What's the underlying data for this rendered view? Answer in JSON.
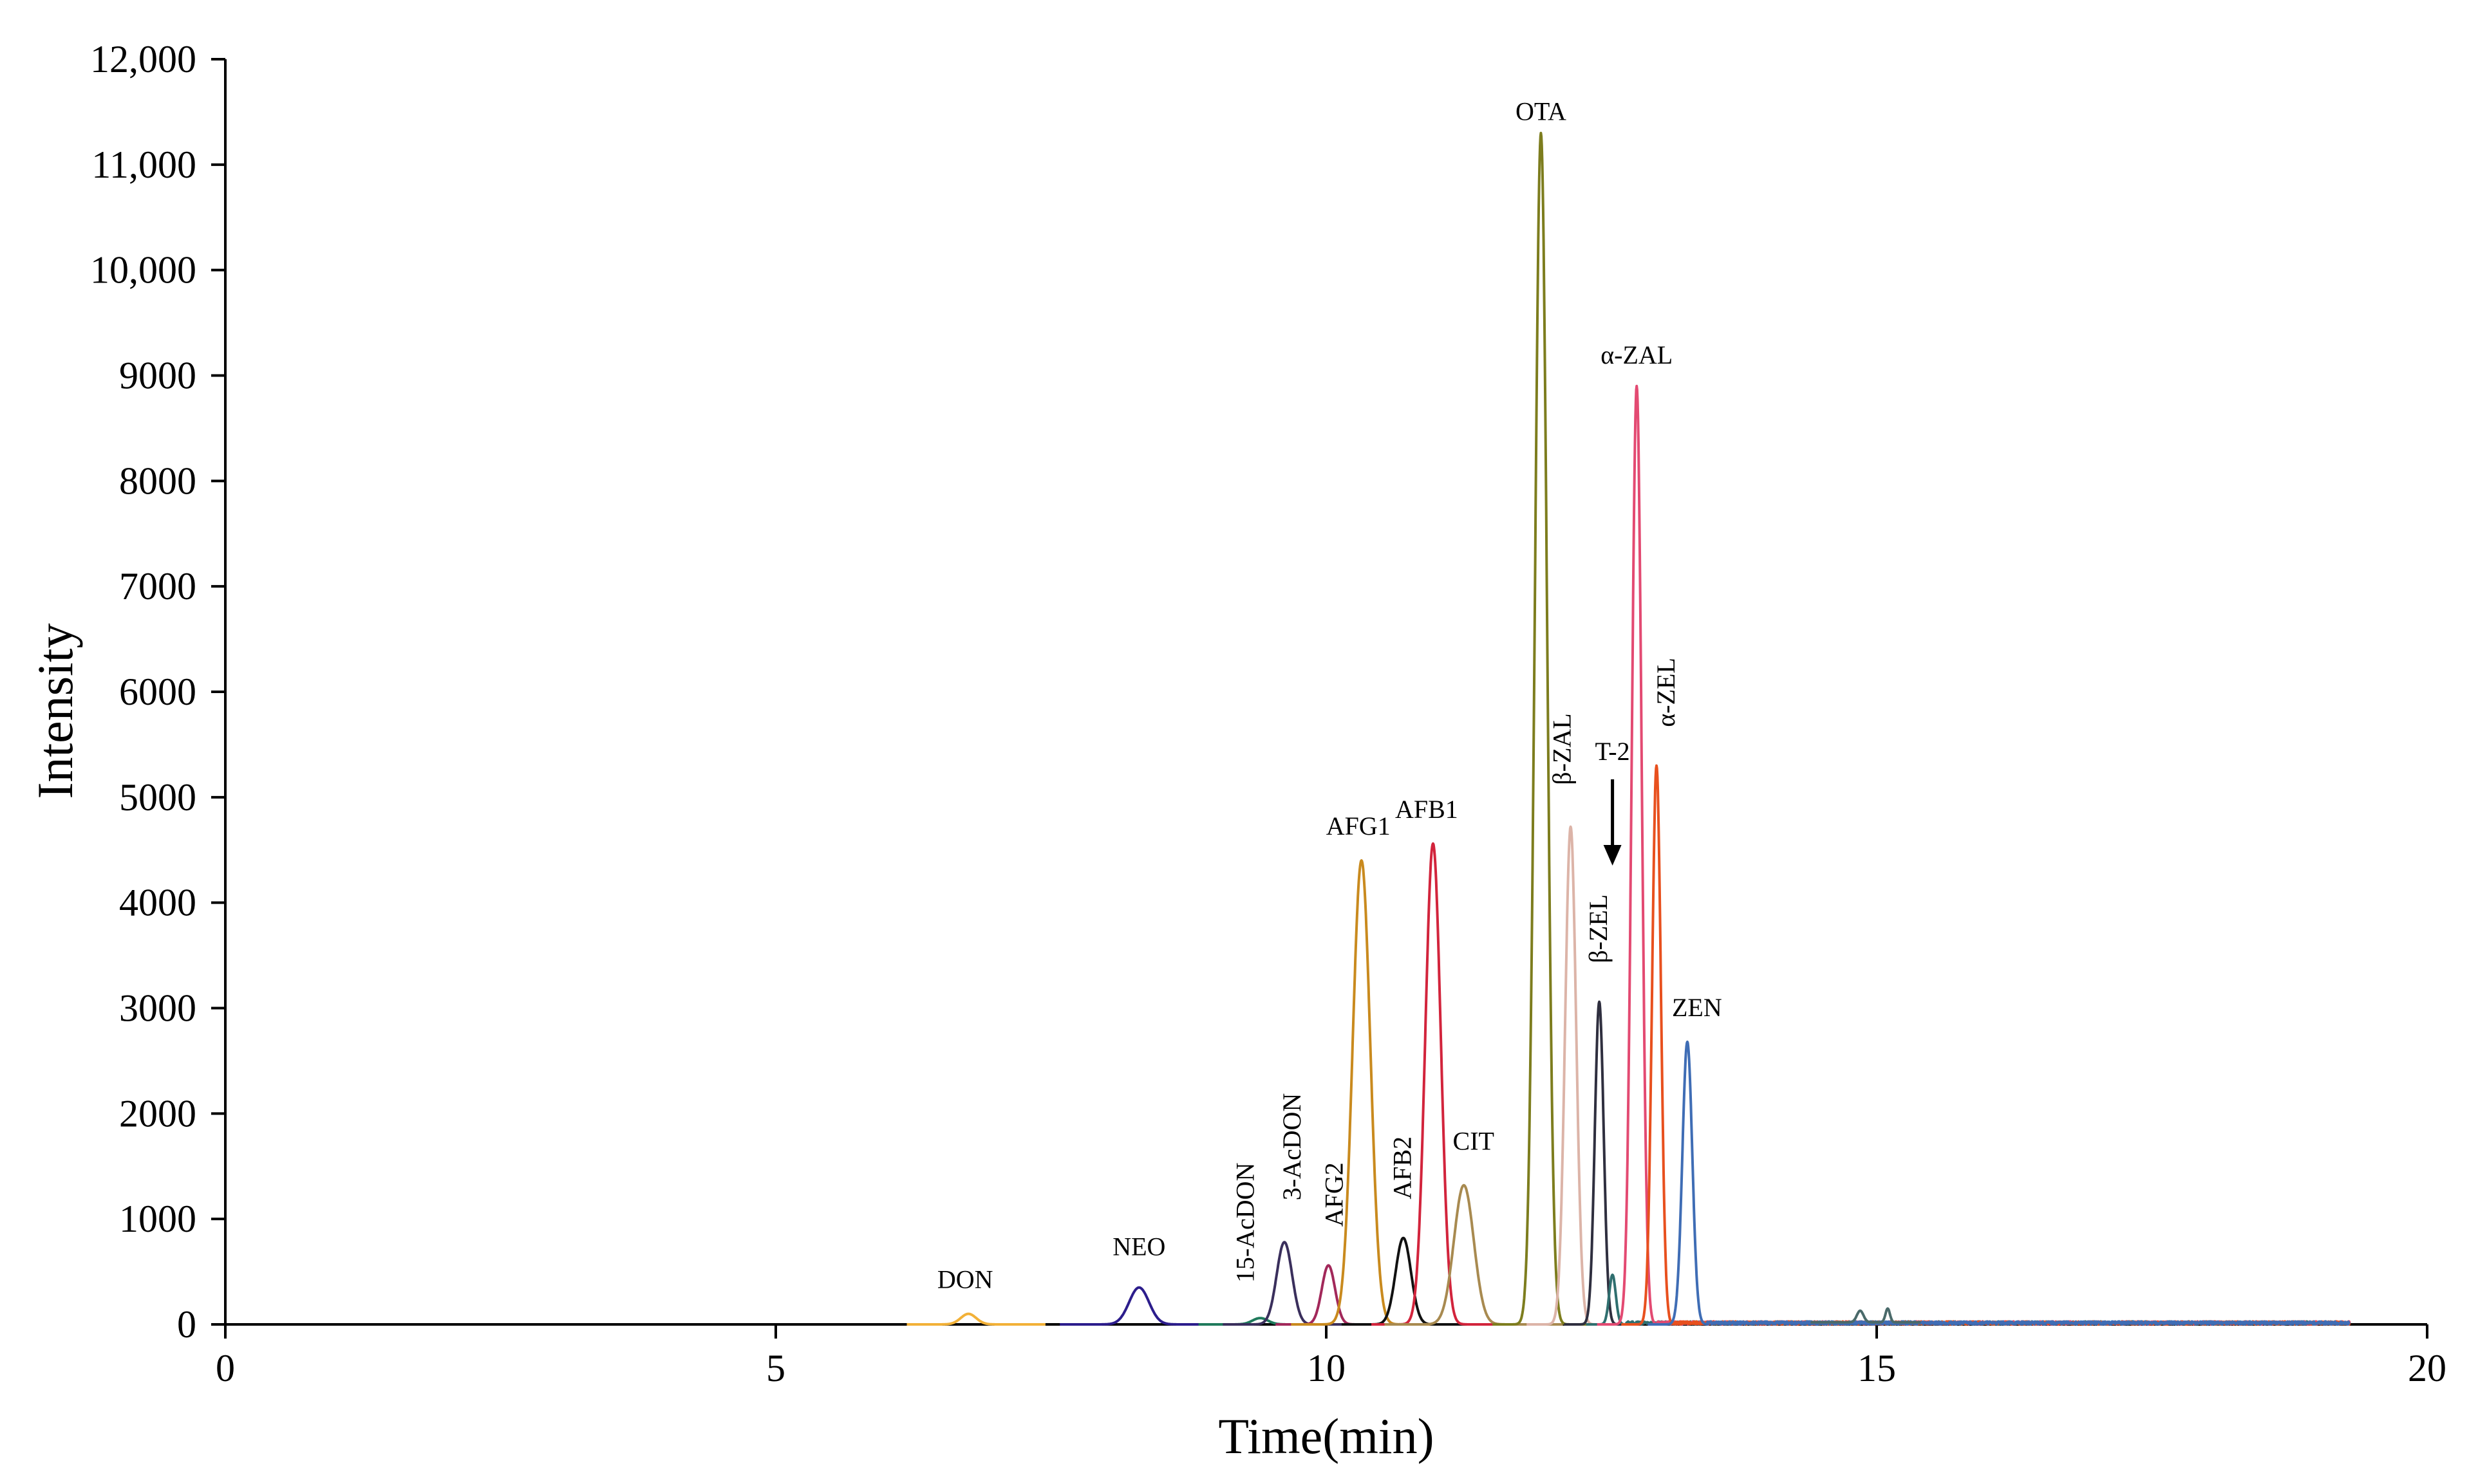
{
  "chart_data": {
    "type": "line",
    "title": "",
    "xlabel": "Time(min)",
    "ylabel": "Intensity",
    "xlim": [
      0,
      20
    ],
    "ylim": [
      0,
      12000
    ],
    "x_ticks": [
      0,
      5,
      10,
      15,
      20
    ],
    "x_tick_labels": [
      "0",
      "5",
      "10",
      "15",
      "20"
    ],
    "y_ticks": [
      0,
      1000,
      2000,
      3000,
      4000,
      5000,
      6000,
      7000,
      8000,
      9000,
      10000,
      11000,
      12000
    ],
    "y_tick_labels": [
      "0",
      "1000",
      "2000",
      "3000",
      "4000",
      "5000",
      "6000",
      "7000",
      "8000",
      "9000",
      "10,000",
      "11,000",
      "12,000"
    ],
    "grid": false,
    "series": [
      {
        "name": "DON",
        "label": "DON",
        "retention_time": 6.75,
        "peak_intensity": 100,
        "width": 0.07,
        "color": "#f2b138"
      },
      {
        "name": "NEO",
        "label": "NEO",
        "retention_time": 8.3,
        "peak_intensity": 350,
        "width": 0.09,
        "color": "#2c1d8c"
      },
      {
        "name": "15-AcDON",
        "label": "15-AcDON",
        "retention_time": 9.4,
        "peak_intensity": 60,
        "width": 0.07,
        "color": "#1f7a5c"
      },
      {
        "name": "3-AcDON",
        "label": "3-AcDON",
        "retention_time": 9.62,
        "peak_intensity": 780,
        "width": 0.07,
        "color": "#3a2f5c"
      },
      {
        "name": "AFG2",
        "label": "AFG2",
        "retention_time": 10.02,
        "peak_intensity": 560,
        "width": 0.06,
        "color": "#a2285a"
      },
      {
        "name": "AFG1",
        "label": "AFG1",
        "retention_time": 10.32,
        "peak_intensity": 4400,
        "width": 0.08,
        "color": "#c98a1e"
      },
      {
        "name": "AFB2",
        "label": "AFB2",
        "retention_time": 10.7,
        "peak_intensity": 820,
        "width": 0.07,
        "color": "#111111"
      },
      {
        "name": "AFB1",
        "label": "AFB1",
        "retention_time": 10.97,
        "peak_intensity": 4560,
        "width": 0.07,
        "color": "#d2243c"
      },
      {
        "name": "CIT",
        "label": "CIT",
        "retention_time": 11.25,
        "peak_intensity": 1320,
        "width": 0.09,
        "color": "#a88a50"
      },
      {
        "name": "OTA",
        "label": "OTA",
        "retention_time": 11.95,
        "peak_intensity": 11300,
        "width": 0.055,
        "color": "#7d7d1e"
      },
      {
        "name": "β-ZAL",
        "label": "β-ZAL",
        "retention_time": 12.22,
        "peak_intensity": 4720,
        "width": 0.05,
        "color": "#dcb4a8"
      },
      {
        "name": "β-ZEL",
        "label": "β-ZEL",
        "retention_time": 12.48,
        "peak_intensity": 3060,
        "width": 0.04,
        "color": "#2f2f3f"
      },
      {
        "name": "T-2",
        "label": "T-2",
        "retention_time": 12.6,
        "peak_intensity": 470,
        "width": 0.03,
        "color": "#2f6f6f"
      },
      {
        "name": "α-ZAL",
        "label": "α-ZAL",
        "retention_time": 12.82,
        "peak_intensity": 8900,
        "width": 0.045,
        "color": "#e34a72"
      },
      {
        "name": "α-ZEL",
        "label": "α-ZEL",
        "retention_time": 13.0,
        "peak_intensity": 5300,
        "width": 0.04,
        "color": "#e8501e"
      },
      {
        "name": "ZEN",
        "label": "ZEN",
        "retention_time": 13.28,
        "peak_intensity": 2680,
        "width": 0.045,
        "color": "#3f6db5"
      }
    ]
  }
}
